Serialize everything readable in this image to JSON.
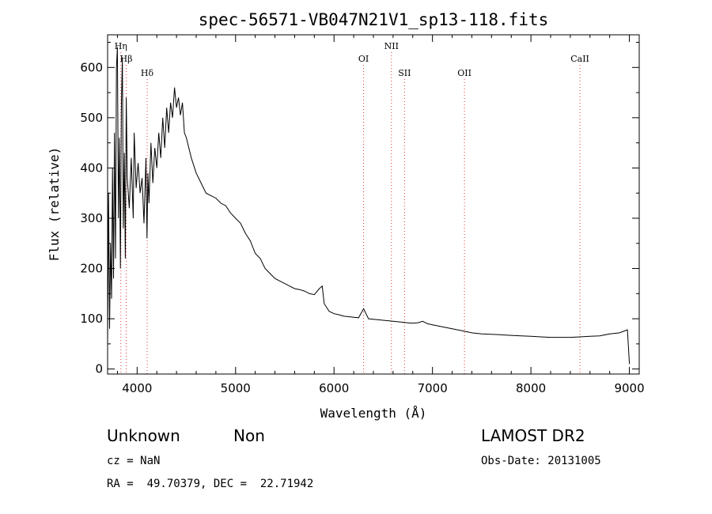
{
  "chart_data": {
    "type": "line",
    "title": "spec-56571-VB047N21V1_sp13-118.fits",
    "xlabel": "Wavelength (Å)",
    "ylabel": "Flux (relative)",
    "xlim": [
      3700,
      9100
    ],
    "ylim": [
      -10,
      665
    ],
    "xticks": [
      "4000",
      "5000",
      "6000",
      "7000",
      "8000",
      "9000"
    ],
    "yticks": [
      "0",
      "100",
      "200",
      "300",
      "400",
      "500",
      "600"
    ],
    "grid": false,
    "series": [
      {
        "x": [
          3700,
          3710,
          3720,
          3730,
          3740,
          3750,
          3760,
          3770,
          3780,
          3790,
          3800,
          3810,
          3820,
          3830,
          3840,
          3850,
          3860,
          3870,
          3880,
          3890,
          3900,
          3920,
          3940,
          3960,
          3970,
          3990,
          4010,
          4030,
          4050,
          4070,
          4090,
          4100,
          4110,
          4120,
          4140,
          4160,
          4180,
          4200,
          4220,
          4240,
          4260,
          4280,
          4300,
          4320,
          4340,
          4360,
          4380,
          4400,
          4420,
          4440,
          4460,
          4480,
          4500,
          4550,
          4600,
          4650,
          4700,
          4750,
          4800,
          4850,
          4900,
          4950,
          5000,
          5050,
          5100,
          5150,
          5200,
          5250,
          5300,
          5350,
          5400,
          5450,
          5500,
          5550,
          5600,
          5650,
          5700,
          5750,
          5800,
          5850,
          5880,
          5900,
          5950,
          6000,
          6050,
          6100,
          6150,
          6200,
          6250,
          6300,
          6350,
          6400,
          6450,
          6500,
          6550,
          6600,
          6650,
          6700,
          6750,
          6800,
          6850,
          6900,
          6950,
          7000,
          7100,
          7200,
          7300,
          7400,
          7500,
          7600,
          7700,
          7800,
          7900,
          8000,
          8100,
          8200,
          8300,
          8400,
          8500,
          8600,
          8700,
          8800,
          8900,
          8980,
          9000
        ],
        "y": [
          50,
          350,
          80,
          250,
          140,
          400,
          180,
          470,
          220,
          600,
          640,
          300,
          460,
          200,
          520,
          620,
          280,
          430,
          220,
          540,
          380,
          320,
          420,
          300,
          470,
          360,
          410,
          350,
          380,
          290,
          420,
          260,
          390,
          330,
          450,
          370,
          440,
          400,
          470,
          420,
          500,
          440,
          520,
          470,
          530,
          500,
          560,
          520,
          540,
          505,
          530,
          470,
          460,
          420,
          390,
          370,
          350,
          345,
          340,
          330,
          325,
          310,
          300,
          290,
          270,
          255,
          230,
          220,
          200,
          190,
          180,
          175,
          170,
          165,
          160,
          158,
          155,
          150,
          148,
          160,
          165,
          130,
          115,
          110,
          108,
          105,
          104,
          103,
          102,
          120,
          100,
          99,
          98,
          97,
          96,
          95,
          94,
          93,
          92,
          91,
          92,
          95,
          90,
          88,
          84,
          80,
          76,
          72,
          70,
          69,
          68,
          67,
          66,
          65,
          64,
          63,
          63,
          63,
          64,
          65,
          66,
          70,
          72,
          78,
          10
        ]
      }
    ],
    "line_markers": [
      {
        "label": "Hη",
        "x": 3835,
        "row": 0
      },
      {
        "label": "Hβ",
        "x": 3889,
        "row": 1
      },
      {
        "label": "Hδ",
        "x": 4102,
        "row": 2
      },
      {
        "label": "OI",
        "x": 6300,
        "row": 1
      },
      {
        "label": "NII",
        "x": 6583,
        "row": 0
      },
      {
        "label": "SII",
        "x": 6716,
        "row": 2
      },
      {
        "label": "OII",
        "x": 7325,
        "row": 2
      },
      {
        "label": "CaII",
        "x": 8498,
        "row": 1
      }
    ],
    "colors": {
      "marker_line": "#dd3333",
      "spectrum": "#000000"
    }
  },
  "info": {
    "object_class": "Unknown",
    "subclass": "Non",
    "survey": "LAMOST DR2",
    "cz": "cz = NaN",
    "obs_date": "Obs-Date: 20131005",
    "coords": "RA =  49.70379, DEC =  22.71942"
  }
}
